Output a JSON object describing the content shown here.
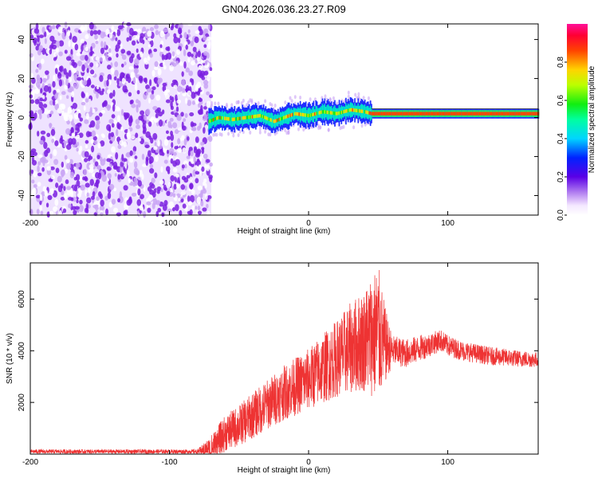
{
  "title": "GN04.2026.036.23.27.R09",
  "chart_data": [
    {
      "type": "heatmap",
      "name": "spectrogram",
      "xlabel": "Height of straight line (km)",
      "ylabel": "Frequency (Hz)",
      "xlim": [
        -200,
        165
      ],
      "ylim": [
        -50,
        48
      ],
      "xticks": [
        -200,
        -100,
        0,
        100
      ],
      "yticks": [
        -40,
        -20,
        0,
        20,
        40
      ],
      "colorbar": {
        "label": "Normalized spectral amplitude",
        "range": [
          0,
          1
        ],
        "ticks": [
          0.0,
          0.2,
          0.4,
          0.6,
          0.8
        ]
      },
      "regions": [
        {
          "x": [
            -200,
            -70
          ],
          "description": "broadband noise, amplitude ~0.1-0.3"
        },
        {
          "x": [
            -70,
            45
          ],
          "description": "narrow band near 0 Hz, amplitude ~0.4-0.9"
        },
        {
          "x": [
            45,
            165
          ],
          "description": "steady line at ~2 Hz, amplitude ~0.9"
        }
      ],
      "trace": {
        "x": [
          -72,
          -65,
          -55,
          -45,
          -35,
          -25,
          -18,
          -10,
          0,
          10,
          20,
          30,
          40,
          45,
          55,
          80,
          100,
          120,
          140,
          165
        ],
        "frequency": [
          -2,
          0,
          -1,
          0,
          1,
          -2,
          0,
          2,
          1,
          3,
          2,
          4,
          3,
          2,
          2,
          2,
          2,
          2,
          2,
          2
        ]
      }
    },
    {
      "type": "line",
      "name": "snr",
      "xlabel": "Height of straight line (km)",
      "ylabel": "SNR (10 * v/v)",
      "xlim": [
        -200,
        165
      ],
      "ylim": [
        0,
        7400
      ],
      "xticks": [
        -200,
        -100,
        0,
        100
      ],
      "yticks": [
        2000,
        4000,
        6000
      ],
      "color": "#ee3333",
      "series": {
        "x": [
          -200,
          -150,
          -100,
          -75,
          -70,
          -60,
          -50,
          -40,
          -30,
          -20,
          -10,
          0,
          10,
          20,
          30,
          40,
          45,
          50,
          55,
          60,
          70,
          80,
          90,
          95,
          100,
          110,
          120,
          130,
          140,
          150,
          165
        ],
        "y": [
          100,
          100,
          100,
          100,
          150,
          800,
          1100,
          1500,
          1900,
          2300,
          2600,
          2900,
          3300,
          3700,
          4100,
          4400,
          4600,
          4700,
          4200,
          4000,
          3900,
          4100,
          4300,
          4400,
          4200,
          4000,
          3900,
          3800,
          3750,
          3700,
          3650
        ]
      },
      "noise_amplitude": {
        "x": [
          -200,
          -80,
          -70,
          -40,
          0,
          20,
          40,
          50,
          55,
          60,
          100,
          165
        ],
        "amp": [
          80,
          80,
          600,
          900,
          1200,
          1500,
          2000,
          2700,
          1500,
          600,
          400,
          300
        ]
      }
    }
  ]
}
